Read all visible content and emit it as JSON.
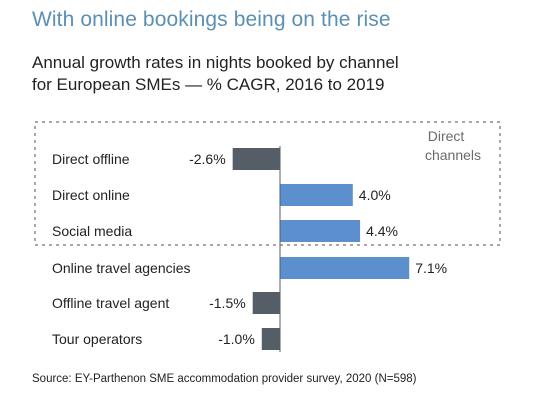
{
  "headline": "With online bookings being on the rise",
  "subtitle_lines": [
    "Annual growth rates in nights booked by channel",
    "for European SMEs — % CAGR, 2016 to 2019"
  ],
  "source": "Source: EY-Parthenon SME accommodation provider survey, 2020 (N=598)",
  "colors": {
    "positive": "#5b8fce",
    "negative": "#555d66",
    "headline": "#5b8fb5",
    "box": "#a8a8a8"
  },
  "chart_data": {
    "type": "bar",
    "orientation": "horizontal",
    "title": "Annual growth rates in nights booked by channel for European SMEs — % CAGR, 2016 to 2019",
    "categories": [
      "Direct offline",
      "Direct online",
      "Social media",
      "Online travel agencies",
      "Offline travel agent",
      "Tour operators"
    ],
    "values": [
      -2.6,
      4.0,
      4.4,
      7.1,
      -1.5,
      -1.0
    ],
    "value_labels": [
      "-2.6%",
      "4.0%",
      "4.4%",
      "7.1%",
      "-1.5%",
      "-1.0%"
    ],
    "group_label_lines": [
      "Direct",
      "channels"
    ],
    "grouped_categories": [
      "Direct offline",
      "Direct online",
      "Social media"
    ],
    "grid": false
  }
}
